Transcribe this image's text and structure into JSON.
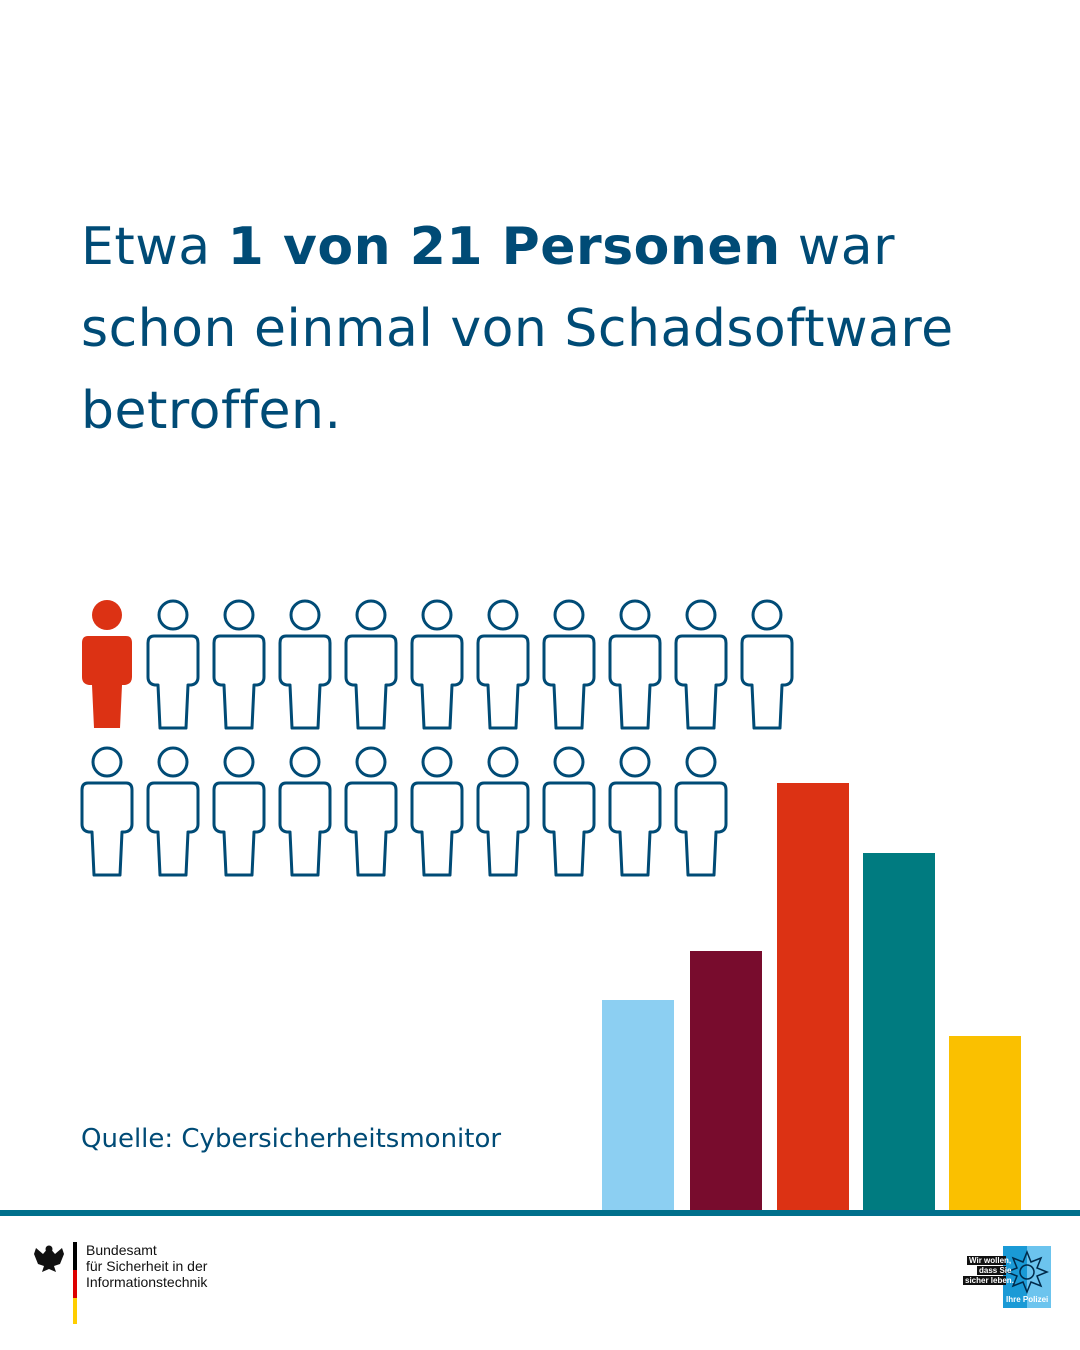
{
  "headline": {
    "prefix": "Etwa ",
    "emphasis": "1 von 21 Personen",
    "suffix": " war schon einmal von Schadsoftware betroffen."
  },
  "pictogram": {
    "total": 21,
    "highlighted": 1,
    "per_row": 11,
    "highlight_color": "#dc3214",
    "outline_color": "#004b76",
    "icon": "person-icon"
  },
  "decorative_bars": {
    "colors": [
      "#8ccff2",
      "#780c2d",
      "#dc3214",
      "#007b80",
      "#fac000"
    ]
  },
  "source": "Quelle: Cybersicherheitsmonitor",
  "footer": {
    "bsi_logo": [
      "Bundesamt",
      "für Sicherheit in der",
      "Informationstechnik"
    ],
    "police_logo": {
      "slogan": [
        "Wir wollen,",
        "dass Sie",
        "sicher leben."
      ],
      "brand": "Ihre Polizei"
    },
    "accent_line_color": "#00708c"
  }
}
